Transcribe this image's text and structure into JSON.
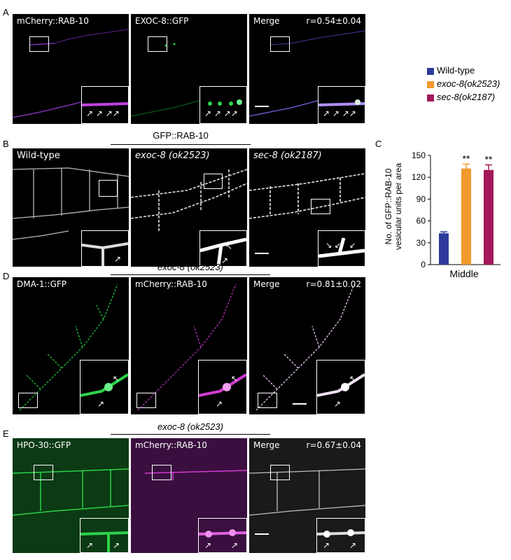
{
  "panel_labels": {
    "A": "A",
    "B": "B",
    "C": "C",
    "D": "D",
    "E": "E"
  },
  "row_a": {
    "titles": [
      "mCherry::RAB-10",
      "EXOC-8::GFP",
      "Merge"
    ],
    "r_value": "r=0.54±0.04"
  },
  "row_b": {
    "header": "GFP::RAB-10",
    "titles": [
      "Wild-type",
      "exoc-8 (ok2523)",
      "sec-8 (ok2187)"
    ]
  },
  "row_d": {
    "header": "exoc-8 (ok2523)",
    "titles": [
      "DMA-1::GFP",
      "mCherry::RAB-10",
      "Merge"
    ],
    "r_value": "r=0.81±0.02"
  },
  "row_e": {
    "header": "exoc-8 (ok2523)",
    "titles": [
      "HPO-30::GFP",
      "mCherry::RAB-10",
      "Merge"
    ],
    "r_value": "r=0.67±0.04"
  },
  "colors": {
    "wild_type": "#2f3b9c",
    "exoc8": "#f29a2e",
    "sec8": "#a3195b",
    "green_channel": "#2bd24a",
    "magenta_channel": "#d23ad2",
    "merge_a": "#9a7cf0"
  },
  "chart_data": {
    "type": "bar",
    "categories": [
      "Middle"
    ],
    "series": [
      {
        "name": "Wild-type",
        "values": [
          43
        ],
        "error": [
          2
        ]
      },
      {
        "name": "exoc-8(ok2523)",
        "values": [
          132
        ],
        "error": [
          6
        ],
        "annotation": "**"
      },
      {
        "name": "sec-8(ok2187)",
        "values": [
          130
        ],
        "error": [
          7
        ],
        "annotation": "**"
      }
    ],
    "ylabel_line1": "No. of GFP::RAB-10",
    "ylabel_line2": "vesicular units per area",
    "xlabel": "Middle",
    "yticks": [
      "0",
      "30",
      "60",
      "90",
      "120",
      "150"
    ],
    "ylim": [
      0,
      150
    ],
    "legend_position": "top-right"
  }
}
